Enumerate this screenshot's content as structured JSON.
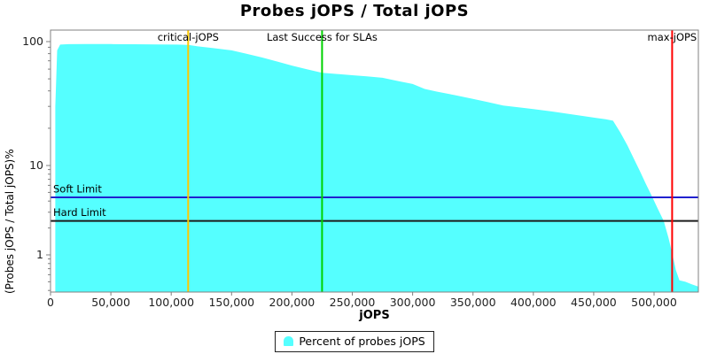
{
  "chart_data": {
    "type": "area",
    "title": "Probes jOPS / Total jOPS",
    "xlabel": "jOPS",
    "ylabel": "(Probes jOPS / Total jOPS)%",
    "x_axis": {
      "min": 0,
      "max": 537000,
      "tick_step": 50000,
      "ticks": [
        0,
        50000,
        100000,
        150000,
        200000,
        250000,
        300000,
        350000,
        400000,
        450000,
        500000
      ],
      "tick_labels": [
        "0",
        "50,000",
        "100,000",
        "150,000",
        "200,000",
        "250,000",
        "300,000",
        "350,000",
        "400,000",
        "450,000",
        "500,000"
      ]
    },
    "y_axis": {
      "scale": "log",
      "min": 0.4,
      "max": 120,
      "major_ticks": [
        100,
        10,
        1
      ],
      "major_tick_labels": [
        "100",
        "10",
        "1"
      ],
      "minor_ticks": [
        90,
        80,
        70,
        60,
        50,
        40,
        30,
        20,
        9,
        8,
        7,
        6,
        5,
        4,
        3,
        2,
        0.9,
        0.8,
        0.7,
        0.6,
        0.5,
        0.4
      ]
    },
    "series": [
      {
        "name": "Percent of probes jOPS",
        "color": "#55FFFF",
        "points": [
          [
            4000,
            30
          ],
          [
            5500,
            85
          ],
          [
            8000,
            94.5
          ],
          [
            15000,
            95.3
          ],
          [
            30000,
            95.5
          ],
          [
            50000,
            95.5
          ],
          [
            70000,
            95.2
          ],
          [
            90000,
            94.8
          ],
          [
            105000,
            94.5
          ],
          [
            114000,
            94
          ],
          [
            122000,
            91.5
          ],
          [
            135000,
            88.5
          ],
          [
            150000,
            85
          ],
          [
            162000,
            80
          ],
          [
            175000,
            74.5
          ],
          [
            188000,
            69
          ],
          [
            200000,
            64
          ],
          [
            212000,
            60
          ],
          [
            225000,
            56
          ],
          [
            240000,
            54.5
          ],
          [
            250000,
            53.5
          ],
          [
            262000,
            52.5
          ],
          [
            275000,
            51
          ],
          [
            288000,
            48
          ],
          [
            300000,
            45.5
          ],
          [
            310000,
            41.5
          ],
          [
            320000,
            39.5
          ],
          [
            335000,
            37
          ],
          [
            350000,
            34.5
          ],
          [
            362000,
            32.5
          ],
          [
            375000,
            30.5
          ],
          [
            390000,
            29.3
          ],
          [
            400000,
            28.5
          ],
          [
            415000,
            27.3
          ],
          [
            430000,
            26
          ],
          [
            442000,
            25
          ],
          [
            452000,
            24.2
          ],
          [
            460000,
            23.6
          ],
          [
            466000,
            23
          ],
          [
            472000,
            18.5
          ],
          [
            478000,
            14.5
          ],
          [
            483000,
            11.5
          ],
          [
            488000,
            8.8
          ],
          [
            493000,
            6.3
          ],
          [
            498000,
            4.6
          ],
          [
            503000,
            3.3
          ],
          [
            508000,
            2.4
          ],
          [
            512000,
            1.55
          ],
          [
            515000,
            1.05
          ],
          [
            518000,
            0.68
          ],
          [
            521000,
            0.52
          ],
          [
            526000,
            0.5
          ],
          [
            531000,
            0.47
          ],
          [
            537000,
            0.44
          ]
        ]
      }
    ],
    "vertical_markers": [
      {
        "label": "critical-jOPS",
        "value": 114000,
        "color": "#FFC800"
      },
      {
        "label": "Last Success for SLAs",
        "value": 225000,
        "color": "#00D200"
      },
      {
        "label": "max-jOPS",
        "value": 515000,
        "color": "#FF0000"
      }
    ],
    "horizontal_markers": [
      {
        "label": "Soft Limit",
        "value": 4.4,
        "color": "#2121CE"
      },
      {
        "label": "Hard Limit",
        "value": 2.4,
        "color": "#1C1C1C"
      }
    ],
    "legend": {
      "position": "bottom",
      "entries": [
        "Percent of probes jOPS"
      ]
    },
    "colors": {
      "plot_border": "#808080",
      "tick": "#808080",
      "text": "#000000",
      "background": "#FFFFFF"
    }
  }
}
